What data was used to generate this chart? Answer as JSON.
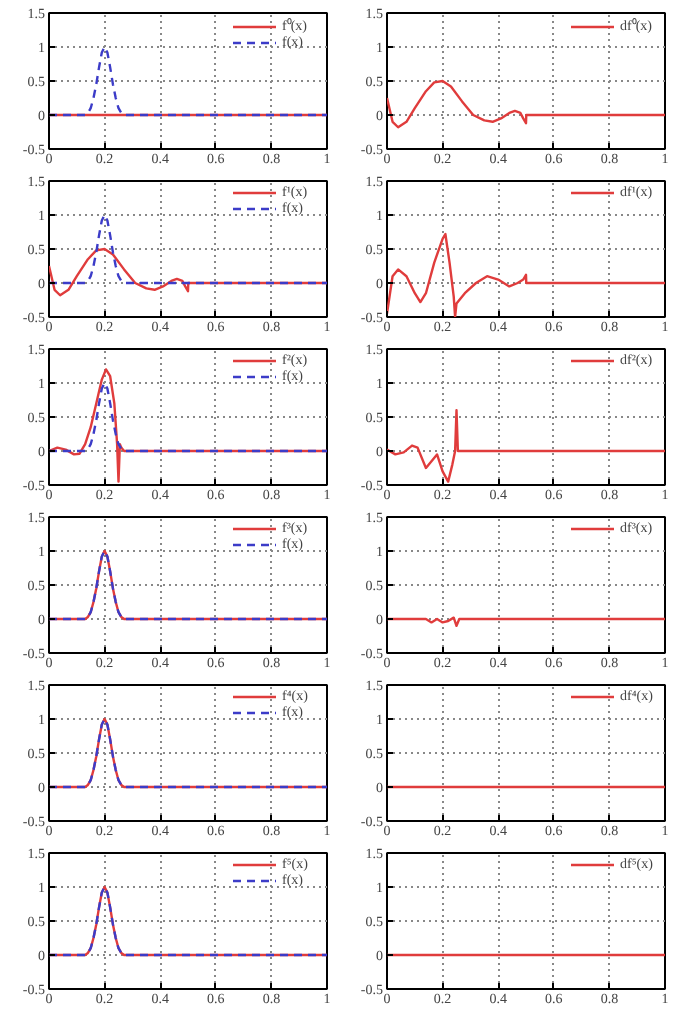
{
  "chart_data": [
    {
      "type": "line",
      "xlim": [
        0,
        1
      ],
      "ylim": [
        -0.5,
        1.5
      ],
      "xticks": [
        0,
        0.2,
        0.4,
        0.6,
        0.8,
        1
      ],
      "yticks": [
        -0.5,
        0,
        0.5,
        1,
        1.5
      ],
      "grid": true,
      "legend": "top right",
      "series": [
        {
          "name": "f⁰(x)",
          "color": "#e03c3c",
          "line_style": "solid",
          "x": [
            0,
            1
          ],
          "values": [
            0,
            0
          ]
        },
        {
          "name": "f(x)",
          "color": "#3c3cc8",
          "line_style": "dashed",
          "x": [
            0,
            0.13,
            0.14,
            0.15,
            0.16,
            0.17,
            0.18,
            0.19,
            0.2,
            0.21,
            0.22,
            0.23,
            0.24,
            0.25,
            0.26,
            0.27,
            1
          ],
          "values": [
            0,
            0,
            0.03,
            0.1,
            0.25,
            0.45,
            0.7,
            0.92,
            1,
            0.92,
            0.7,
            0.45,
            0.25,
            0.1,
            0.03,
            0,
            0
          ]
        }
      ]
    },
    {
      "type": "line",
      "xlim": [
        0,
        1
      ],
      "ylim": [
        -0.5,
        1.5
      ],
      "xticks": [
        0,
        0.2,
        0.4,
        0.6,
        0.8,
        1
      ],
      "yticks": [
        -0.5,
        0,
        0.5,
        1,
        1.5
      ],
      "grid": true,
      "legend": "top right",
      "series": [
        {
          "name": "df⁰(x)",
          "color": "#e03c3c",
          "line_style": "solid",
          "x": [
            0,
            0.02,
            0.04,
            0.07,
            0.1,
            0.14,
            0.17,
            0.2,
            0.23,
            0.27,
            0.31,
            0.35,
            0.38,
            0.41,
            0.44,
            0.46,
            0.48,
            0.49,
            0.5,
            0.501,
            1
          ],
          "values": [
            0.25,
            -0.1,
            -0.18,
            -0.1,
            0.1,
            0.35,
            0.48,
            0.5,
            0.42,
            0.2,
            0.0,
            -0.08,
            -0.1,
            -0.05,
            0.03,
            0.06,
            0.03,
            -0.05,
            -0.12,
            0,
            0
          ]
        }
      ]
    },
    {
      "type": "line",
      "xlim": [
        0,
        1
      ],
      "ylim": [
        -0.5,
        1.5
      ],
      "xticks": [
        0,
        0.2,
        0.4,
        0.6,
        0.8,
        1
      ],
      "yticks": [
        -0.5,
        0,
        0.5,
        1,
        1.5
      ],
      "grid": true,
      "legend": "top right",
      "series": [
        {
          "name": "f¹(x)",
          "color": "#e03c3c",
          "line_style": "solid",
          "x": [
            0,
            0.02,
            0.04,
            0.07,
            0.1,
            0.14,
            0.17,
            0.2,
            0.23,
            0.27,
            0.31,
            0.35,
            0.38,
            0.41,
            0.44,
            0.46,
            0.48,
            0.49,
            0.5,
            0.501,
            1
          ],
          "values": [
            0.25,
            -0.1,
            -0.18,
            -0.1,
            0.1,
            0.35,
            0.48,
            0.5,
            0.42,
            0.2,
            0.0,
            -0.08,
            -0.1,
            -0.05,
            0.03,
            0.06,
            0.03,
            -0.05,
            -0.12,
            0,
            0
          ]
        },
        {
          "name": "f(x)",
          "color": "#3c3cc8",
          "line_style": "dashed",
          "x": [
            0,
            0.13,
            0.14,
            0.15,
            0.16,
            0.17,
            0.18,
            0.19,
            0.2,
            0.21,
            0.22,
            0.23,
            0.24,
            0.25,
            0.26,
            0.27,
            1
          ],
          "values": [
            0,
            0,
            0.03,
            0.1,
            0.25,
            0.45,
            0.7,
            0.92,
            1,
            0.92,
            0.7,
            0.45,
            0.25,
            0.1,
            0.03,
            0,
            0
          ]
        }
      ]
    },
    {
      "type": "line",
      "xlim": [
        0,
        1
      ],
      "ylim": [
        -0.5,
        1.5
      ],
      "xticks": [
        0,
        0.2,
        0.4,
        0.6,
        0.8,
        1
      ],
      "yticks": [
        -0.5,
        0,
        0.5,
        1,
        1.5
      ],
      "grid": true,
      "legend": "top right",
      "series": [
        {
          "name": "df¹(x)",
          "color": "#e03c3c",
          "line_style": "solid",
          "x": [
            0,
            0.02,
            0.04,
            0.07,
            0.1,
            0.12,
            0.14,
            0.17,
            0.2,
            0.21,
            0.225,
            0.24,
            0.245,
            0.25,
            0.28,
            0.32,
            0.36,
            0.4,
            0.44,
            0.47,
            0.49,
            0.5,
            0.501,
            1
          ],
          "values": [
            -0.45,
            0.1,
            0.2,
            0.1,
            -0.15,
            -0.28,
            -0.15,
            0.3,
            0.65,
            0.72,
            0.3,
            -0.2,
            -0.5,
            -0.3,
            -0.15,
            0.0,
            0.1,
            0.05,
            -0.05,
            0.0,
            0.05,
            0.12,
            0,
            0
          ]
        }
      ]
    },
    {
      "type": "line",
      "xlim": [
        0,
        1
      ],
      "ylim": [
        -0.5,
        1.5
      ],
      "xticks": [
        0,
        0.2,
        0.4,
        0.6,
        0.8,
        1
      ],
      "yticks": [
        -0.5,
        0,
        0.5,
        1,
        1.5
      ],
      "grid": true,
      "legend": "top right",
      "series": [
        {
          "name": "f²(x)",
          "color": "#e03c3c",
          "line_style": "solid",
          "x": [
            0,
            0.03,
            0.06,
            0.09,
            0.11,
            0.13,
            0.15,
            0.17,
            0.19,
            0.205,
            0.22,
            0.235,
            0.245,
            0.25,
            0.255,
            0.26,
            0.27,
            1
          ],
          "values": [
            0,
            0.05,
            0.02,
            -0.05,
            -0.04,
            0.1,
            0.35,
            0.7,
            1.05,
            1.2,
            1.1,
            0.7,
            0.1,
            -0.45,
            0.1,
            0.05,
            0,
            0
          ]
        },
        {
          "name": "f(x)",
          "color": "#3c3cc8",
          "line_style": "dashed",
          "x": [
            0,
            0.13,
            0.14,
            0.15,
            0.16,
            0.17,
            0.18,
            0.19,
            0.2,
            0.21,
            0.22,
            0.23,
            0.24,
            0.25,
            0.26,
            0.27,
            1
          ],
          "values": [
            0,
            0,
            0.03,
            0.1,
            0.25,
            0.45,
            0.7,
            0.92,
            1,
            0.92,
            0.7,
            0.45,
            0.25,
            0.1,
            0.03,
            0,
            0
          ]
        }
      ]
    },
    {
      "type": "line",
      "xlim": [
        0,
        1
      ],
      "ylim": [
        -0.5,
        1.5
      ],
      "xticks": [
        0,
        0.2,
        0.4,
        0.6,
        0.8,
        1
      ],
      "yticks": [
        -0.5,
        0,
        0.5,
        1,
        1.5
      ],
      "grid": true,
      "legend": "top right",
      "series": [
        {
          "name": "df²(x)",
          "color": "#e03c3c",
          "line_style": "solid",
          "x": [
            0,
            0.03,
            0.06,
            0.09,
            0.11,
            0.14,
            0.16,
            0.18,
            0.2,
            0.22,
            0.235,
            0.245,
            0.25,
            0.255,
            0.27,
            1
          ],
          "values": [
            0.02,
            -0.05,
            -0.02,
            0.08,
            0.05,
            -0.25,
            -0.15,
            -0.05,
            -0.3,
            -0.45,
            -0.2,
            0.0,
            0.6,
            0.0,
            0,
            0
          ]
        }
      ]
    },
    {
      "type": "line",
      "xlim": [
        0,
        1
      ],
      "ylim": [
        -0.5,
        1.5
      ],
      "xticks": [
        0,
        0.2,
        0.4,
        0.6,
        0.8,
        1
      ],
      "yticks": [
        -0.5,
        0,
        0.5,
        1,
        1.5
      ],
      "grid": true,
      "legend": "top right",
      "series": [
        {
          "name": "f³(x)",
          "color": "#e03c3c",
          "line_style": "solid",
          "x": [
            0,
            0.13,
            0.14,
            0.15,
            0.16,
            0.17,
            0.18,
            0.19,
            0.2,
            0.21,
            0.22,
            0.23,
            0.24,
            0.25,
            0.26,
            0.27,
            1
          ],
          "values": [
            0,
            0,
            0.03,
            0.1,
            0.25,
            0.45,
            0.7,
            0.92,
            1,
            0.92,
            0.7,
            0.45,
            0.25,
            0.1,
            0.03,
            0,
            0
          ]
        },
        {
          "name": "f(x)",
          "color": "#3c3cc8",
          "line_style": "dashed",
          "x": [
            0,
            0.13,
            0.14,
            0.15,
            0.16,
            0.17,
            0.18,
            0.19,
            0.2,
            0.21,
            0.22,
            0.23,
            0.24,
            0.25,
            0.26,
            0.27,
            1
          ],
          "values": [
            0,
            0,
            0.03,
            0.1,
            0.25,
            0.45,
            0.7,
            0.92,
            1,
            0.92,
            0.7,
            0.45,
            0.25,
            0.1,
            0.03,
            0,
            0
          ]
        }
      ]
    },
    {
      "type": "line",
      "xlim": [
        0,
        1
      ],
      "ylim": [
        -0.5,
        1.5
      ],
      "xticks": [
        0,
        0.2,
        0.4,
        0.6,
        0.8,
        1
      ],
      "yticks": [
        -0.5,
        0,
        0.5,
        1,
        1.5
      ],
      "grid": true,
      "legend": "top right",
      "series": [
        {
          "name": "df³(x)",
          "color": "#e03c3c",
          "line_style": "solid",
          "x": [
            0,
            0.14,
            0.16,
            0.18,
            0.2,
            0.22,
            0.24,
            0.25,
            0.26,
            1
          ],
          "values": [
            0,
            0,
            -0.05,
            0.0,
            -0.05,
            -0.03,
            0.02,
            -0.1,
            0,
            0
          ]
        }
      ]
    },
    {
      "type": "line",
      "xlim": [
        0,
        1
      ],
      "ylim": [
        -0.5,
        1.5
      ],
      "xticks": [
        0,
        0.2,
        0.4,
        0.6,
        0.8,
        1
      ],
      "yticks": [
        -0.5,
        0,
        0.5,
        1,
        1.5
      ],
      "grid": true,
      "legend": "top right",
      "series": [
        {
          "name": "f⁴(x)",
          "color": "#e03c3c",
          "line_style": "solid",
          "x": [
            0,
            0.13,
            0.14,
            0.15,
            0.16,
            0.17,
            0.18,
            0.19,
            0.2,
            0.21,
            0.22,
            0.23,
            0.24,
            0.25,
            0.26,
            0.27,
            1
          ],
          "values": [
            0,
            0,
            0.03,
            0.1,
            0.25,
            0.45,
            0.7,
            0.92,
            1,
            0.92,
            0.7,
            0.45,
            0.25,
            0.1,
            0.03,
            0,
            0
          ]
        },
        {
          "name": "f(x)",
          "color": "#3c3cc8",
          "line_style": "dashed",
          "x": [
            0,
            0.13,
            0.14,
            0.15,
            0.16,
            0.17,
            0.18,
            0.19,
            0.2,
            0.21,
            0.22,
            0.23,
            0.24,
            0.25,
            0.26,
            0.27,
            1
          ],
          "values": [
            0,
            0,
            0.03,
            0.1,
            0.25,
            0.45,
            0.7,
            0.92,
            1,
            0.92,
            0.7,
            0.45,
            0.25,
            0.1,
            0.03,
            0,
            0
          ]
        }
      ]
    },
    {
      "type": "line",
      "xlim": [
        0,
        1
      ],
      "ylim": [
        -0.5,
        1.5
      ],
      "xticks": [
        0,
        0.2,
        0.4,
        0.6,
        0.8,
        1
      ],
      "yticks": [
        -0.5,
        0,
        0.5,
        1,
        1.5
      ],
      "grid": true,
      "legend": "top right",
      "series": [
        {
          "name": "df⁴(x)",
          "color": "#e03c3c",
          "line_style": "solid",
          "x": [
            0,
            1
          ],
          "values": [
            0,
            0
          ]
        }
      ]
    },
    {
      "type": "line",
      "xlim": [
        0,
        1
      ],
      "ylim": [
        -0.5,
        1.5
      ],
      "xticks": [
        0,
        0.2,
        0.4,
        0.6,
        0.8,
        1
      ],
      "yticks": [
        -0.5,
        0,
        0.5,
        1,
        1.5
      ],
      "grid": true,
      "legend": "top right",
      "series": [
        {
          "name": "f⁵(x)",
          "color": "#e03c3c",
          "line_style": "solid",
          "x": [
            0,
            0.13,
            0.14,
            0.15,
            0.16,
            0.17,
            0.18,
            0.19,
            0.2,
            0.21,
            0.22,
            0.23,
            0.24,
            0.25,
            0.26,
            0.27,
            1
          ],
          "values": [
            0,
            0,
            0.03,
            0.1,
            0.25,
            0.45,
            0.7,
            0.92,
            1,
            0.92,
            0.7,
            0.45,
            0.25,
            0.1,
            0.03,
            0,
            0
          ]
        },
        {
          "name": "f(x)",
          "color": "#3c3cc8",
          "line_style": "dashed",
          "x": [
            0,
            0.13,
            0.14,
            0.15,
            0.16,
            0.17,
            0.18,
            0.19,
            0.2,
            0.21,
            0.22,
            0.23,
            0.24,
            0.25,
            0.26,
            0.27,
            1
          ],
          "values": [
            0,
            0,
            0.03,
            0.1,
            0.25,
            0.45,
            0.7,
            0.92,
            1,
            0.92,
            0.7,
            0.45,
            0.25,
            0.1,
            0.03,
            0,
            0
          ]
        }
      ]
    },
    {
      "type": "line",
      "xlim": [
        0,
        1
      ],
      "ylim": [
        -0.5,
        1.5
      ],
      "xticks": [
        0,
        0.2,
        0.4,
        0.6,
        0.8,
        1
      ],
      "yticks": [
        -0.5,
        0,
        0.5,
        1,
        1.5
      ],
      "grid": true,
      "legend": "top right",
      "series": [
        {
          "name": "df⁵(x)",
          "color": "#e03c3c",
          "line_style": "solid",
          "x": [
            0,
            1
          ],
          "values": [
            0,
            0
          ]
        }
      ]
    }
  ]
}
